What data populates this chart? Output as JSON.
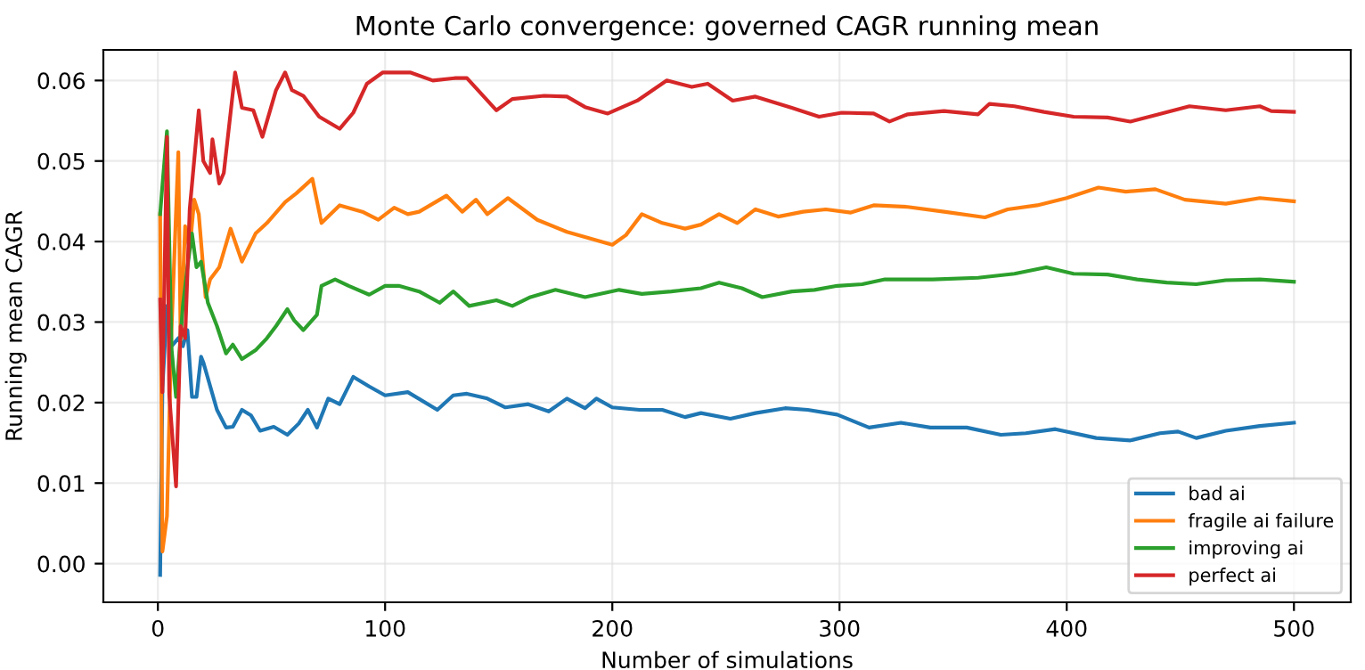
{
  "chart_data": {
    "type": "line",
    "title": "Monte Carlo convergence: governed CAGR running mean",
    "xlabel": "Number of simulations",
    "ylabel": "Running mean CAGR",
    "xlim": [
      -24,
      525
    ],
    "ylim": [
      -0.0048,
      0.0638
    ],
    "xticks": [
      0,
      100,
      200,
      300,
      400,
      500
    ],
    "yticks": [
      {
        "value": 0.0,
        "label": "0.00"
      },
      {
        "value": 0.01,
        "label": "0.01"
      },
      {
        "value": 0.02,
        "label": "0.02"
      },
      {
        "value": 0.03,
        "label": "0.03"
      },
      {
        "value": 0.04,
        "label": "0.04"
      },
      {
        "value": 0.05,
        "label": "0.05"
      },
      {
        "value": 0.06,
        "label": "0.06"
      }
    ],
    "grid": true,
    "legend": "bottom right",
    "line_style": "solid",
    "series": [
      {
        "name": "bad ai",
        "color": "#1f77b4",
        "x": [
          1,
          2,
          4,
          6,
          9,
          11,
          13,
          15,
          17,
          19,
          20,
          26,
          30,
          33,
          37,
          41,
          45,
          51,
          57,
          62,
          66,
          70,
          75,
          80,
          86,
          93,
          100,
          110,
          123,
          130,
          136,
          145,
          153,
          163,
          172,
          180,
          188,
          193,
          200,
          212,
          222,
          232,
          239,
          252,
          263,
          276,
          286,
          299,
          313,
          327,
          340,
          356,
          371,
          382,
          395,
          413,
          428,
          441,
          449,
          457,
          470,
          485,
          500
        ],
        "values": [
          -0.0014,
          0.0218,
          0.032,
          0.027,
          0.028,
          0.027,
          0.029,
          0.0207,
          0.0207,
          0.0257,
          0.025,
          0.0191,
          0.0169,
          0.017,
          0.0191,
          0.0184,
          0.0165,
          0.017,
          0.016,
          0.0174,
          0.0191,
          0.0169,
          0.0205,
          0.0198,
          0.0232,
          0.022,
          0.0209,
          0.0213,
          0.0191,
          0.0209,
          0.0211,
          0.0205,
          0.0194,
          0.0198,
          0.0189,
          0.0205,
          0.0193,
          0.0205,
          0.0194,
          0.0191,
          0.0191,
          0.0182,
          0.0187,
          0.018,
          0.0187,
          0.0193,
          0.0191,
          0.0185,
          0.0169,
          0.0175,
          0.0169,
          0.0169,
          0.016,
          0.0162,
          0.0167,
          0.0156,
          0.0153,
          0.0162,
          0.0164,
          0.0156,
          0.0165,
          0.0171,
          0.0175
        ]
      },
      {
        "name": "fragile ai failure",
        "color": "#ff7f0e",
        "x": [
          1,
          2,
          4,
          6,
          9,
          10,
          12,
          14,
          16,
          18,
          21,
          23,
          27,
          32,
          37,
          43,
          48,
          56,
          61,
          68,
          72,
          80,
          90,
          97,
          104,
          110,
          115,
          127,
          134,
          140,
          145,
          154,
          167,
          180,
          190,
          200,
          206,
          213,
          222,
          232,
          239,
          247,
          255,
          263,
          273,
          284,
          294,
          305,
          315,
          330,
          346,
          364,
          374,
          387,
          400,
          414,
          426,
          439,
          452,
          470,
          485,
          500
        ],
        "values": [
          0.0434,
          0.0015,
          0.0059,
          0.029,
          0.0511,
          0.028,
          0.0419,
          0.039,
          0.0452,
          0.0434,
          0.0331,
          0.0353,
          0.0368,
          0.0416,
          0.0375,
          0.041,
          0.0423,
          0.0449,
          0.046,
          0.0478,
          0.0423,
          0.0445,
          0.0437,
          0.0427,
          0.0442,
          0.0434,
          0.0437,
          0.0457,
          0.0437,
          0.0452,
          0.0434,
          0.0454,
          0.0427,
          0.0412,
          0.0404,
          0.0396,
          0.0408,
          0.0434,
          0.0423,
          0.0416,
          0.0421,
          0.0434,
          0.0423,
          0.044,
          0.0431,
          0.0437,
          0.044,
          0.0436,
          0.0445,
          0.0443,
          0.0437,
          0.043,
          0.044,
          0.0445,
          0.0454,
          0.0467,
          0.0462,
          0.0465,
          0.0452,
          0.0447,
          0.0454,
          0.045
        ]
      },
      {
        "name": "improving ai",
        "color": "#2ca02c",
        "x": [
          1,
          2,
          4,
          6,
          8,
          11,
          13,
          15,
          17,
          19,
          22,
          26,
          30,
          33,
          37,
          43,
          48,
          52,
          57,
          60,
          64,
          70,
          72,
          78,
          84,
          93,
          100,
          106,
          115,
          124,
          130,
          137,
          149,
          156,
          164,
          175,
          188,
          203,
          213,
          226,
          239,
          247,
          257,
          266,
          279,
          289,
          299,
          310,
          320,
          341,
          361,
          377,
          391,
          403,
          418,
          431,
          444,
          457,
          470,
          485,
          500
        ],
        "values": [
          0.0434,
          0.047,
          0.0537,
          0.0267,
          0.0207,
          0.032,
          0.0368,
          0.041,
          0.0368,
          0.0375,
          0.0324,
          0.0295,
          0.0261,
          0.0272,
          0.0254,
          0.0265,
          0.028,
          0.0295,
          0.0316,
          0.0302,
          0.029,
          0.0309,
          0.0345,
          0.0353,
          0.0345,
          0.0334,
          0.0345,
          0.0345,
          0.0338,
          0.0324,
          0.0338,
          0.032,
          0.0327,
          0.032,
          0.0331,
          0.034,
          0.0331,
          0.034,
          0.0335,
          0.0338,
          0.0342,
          0.0349,
          0.0342,
          0.0331,
          0.0338,
          0.034,
          0.0345,
          0.0347,
          0.0353,
          0.0353,
          0.0355,
          0.036,
          0.0368,
          0.036,
          0.0359,
          0.0353,
          0.0349,
          0.0347,
          0.0352,
          0.0353,
          0.035
        ]
      },
      {
        "name": "perfect ai",
        "color": "#d62728",
        "x": [
          1,
          2,
          4,
          5,
          8,
          10,
          12,
          14,
          18,
          20,
          23,
          24,
          27,
          29,
          34,
          37,
          42,
          46,
          52,
          56,
          59,
          64,
          71,
          80,
          86,
          92,
          99,
          111,
          121,
          131,
          136,
          149,
          156,
          170,
          180,
          188,
          198,
          211,
          224,
          235,
          242,
          253,
          263,
          279,
          291,
          301,
          315,
          322,
          330,
          346,
          361,
          366,
          377,
          390,
          403,
          418,
          428,
          439,
          454,
          470,
          485,
          490,
          500
        ],
        "values": [
          0.0328,
          0.0213,
          0.053,
          0.021,
          0.0096,
          0.0295,
          0.028,
          0.044,
          0.0563,
          0.05,
          0.0485,
          0.0527,
          0.0472,
          0.0485,
          0.061,
          0.0566,
          0.0563,
          0.053,
          0.0588,
          0.061,
          0.0588,
          0.0581,
          0.0555,
          0.054,
          0.056,
          0.0596,
          0.061,
          0.061,
          0.06,
          0.0603,
          0.0603,
          0.0563,
          0.0577,
          0.0581,
          0.058,
          0.0567,
          0.0559,
          0.0575,
          0.06,
          0.0592,
          0.0596,
          0.0575,
          0.058,
          0.0566,
          0.0555,
          0.056,
          0.0559,
          0.0549,
          0.0558,
          0.0562,
          0.0558,
          0.0571,
          0.0568,
          0.0561,
          0.0555,
          0.0554,
          0.0549,
          0.0557,
          0.0568,
          0.0563,
          0.0568,
          0.0562,
          0.0561
        ]
      }
    ]
  }
}
